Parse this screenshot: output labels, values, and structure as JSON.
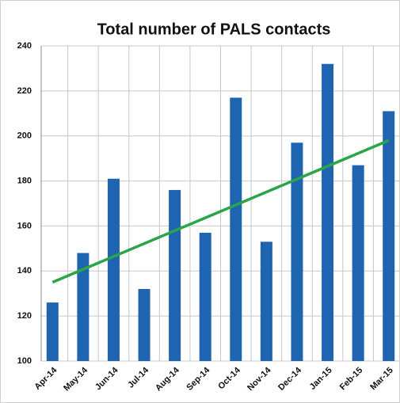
{
  "chart_data": {
    "type": "bar",
    "title": "Total number of PALS contacts",
    "categories": [
      "Apr-14",
      "May-14",
      "Jun-14",
      "Jul-14",
      "Aug-14",
      "Sep-14",
      "Oct-14",
      "Nov-14",
      "Dec-14",
      "Jan-15",
      "Feb-15",
      "Mar-15"
    ],
    "values": [
      126,
      148,
      181,
      132,
      176,
      157,
      217,
      153,
      197,
      232,
      187,
      211
    ],
    "color": "#1f64b0",
    "trendline": {
      "values": [
        135,
        198
      ],
      "color": "#2aa548"
    },
    "ylim": [
      100,
      240
    ],
    "yticks": [
      100,
      120,
      140,
      160,
      180,
      200,
      220,
      240
    ],
    "grid": true
  }
}
